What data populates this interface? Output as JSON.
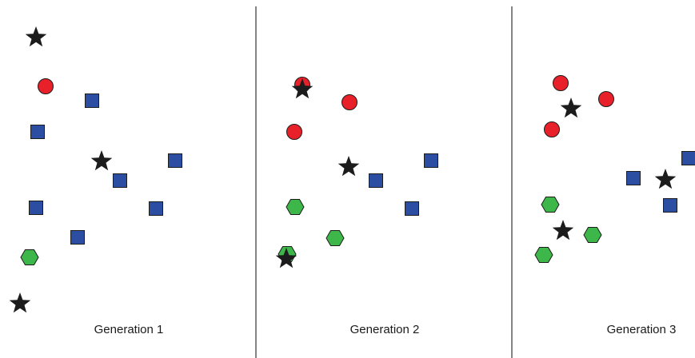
{
  "colors": {
    "circle": "#e8202a",
    "square": "#2b4ea2",
    "hexagon": "#3db64a",
    "star": "#1c1c1c",
    "outline": "#1c1c1c",
    "divider": "#333333"
  },
  "panels": [
    {
      "label": "Generation 1",
      "shapes": [
        {
          "type": "star"
        },
        {
          "type": "circle"
        },
        {
          "type": "square"
        },
        {
          "type": "square"
        },
        {
          "type": "star"
        },
        {
          "type": "square"
        },
        {
          "type": "square"
        },
        {
          "type": "square"
        },
        {
          "type": "square"
        },
        {
          "type": "square"
        },
        {
          "type": "hexagon"
        },
        {
          "type": "star"
        }
      ]
    },
    {
      "label": "Generation 2",
      "shapes": [
        {
          "type": "circle"
        },
        {
          "type": "star"
        },
        {
          "type": "circle"
        },
        {
          "type": "circle"
        },
        {
          "type": "star"
        },
        {
          "type": "square"
        },
        {
          "type": "square"
        },
        {
          "type": "square"
        },
        {
          "type": "hexagon"
        },
        {
          "type": "hexagon"
        },
        {
          "type": "hexagon"
        },
        {
          "type": "star"
        }
      ]
    },
    {
      "label": "Generation 3",
      "shapes": [
        {
          "type": "circle"
        },
        {
          "type": "star"
        },
        {
          "type": "circle"
        },
        {
          "type": "circle"
        },
        {
          "type": "square"
        },
        {
          "type": "square"
        },
        {
          "type": "star"
        },
        {
          "type": "square"
        },
        {
          "type": "hexagon"
        },
        {
          "type": "star"
        },
        {
          "type": "hexagon"
        },
        {
          "type": "hexagon"
        }
      ]
    }
  ]
}
